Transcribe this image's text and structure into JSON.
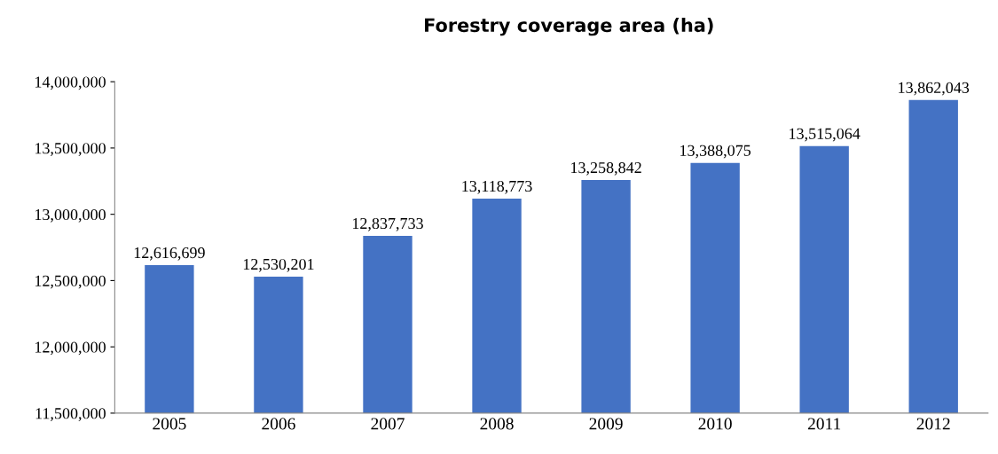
{
  "chart_data": {
    "type": "bar",
    "title": "Forestry coverage area (ha)",
    "categories": [
      "2005",
      "2006",
      "2007",
      "2008",
      "2009",
      "2010",
      "2011",
      "2012"
    ],
    "values": [
      12616699,
      12530201,
      12837733,
      13118773,
      13258842,
      13388075,
      13515064,
      13862043
    ],
    "color": "#4472c4",
    "ylim": [
      11500000,
      14000000
    ],
    "yticks": [
      {
        "value": 11500000,
        "label": "11,500,000"
      },
      {
        "value": 12000000,
        "label": "12,000,000"
      },
      {
        "value": 12500000,
        "label": "12,500,000"
      },
      {
        "value": 13000000,
        "label": "13,000,000"
      },
      {
        "value": 13500000,
        "label": "13,500,000"
      },
      {
        "value": 14000000,
        "label": "14,000,000"
      }
    ],
    "value_labels": [
      "12,616,699",
      "12,530,201",
      "12,837,733",
      "13,118,773",
      "13,258,842",
      "13,388,075",
      "13,515,064",
      "13,862,043"
    ],
    "grid": false,
    "legend": false
  }
}
